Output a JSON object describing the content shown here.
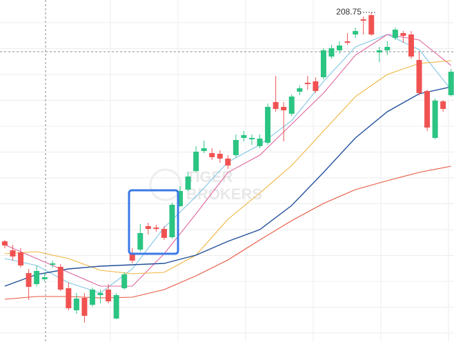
{
  "chart_data": {
    "type": "candlestick",
    "xlim": [
      -0.6,
      56.37
    ],
    "ylim": [
      160.95,
      210.55
    ],
    "watermark": [
      "TIGER",
      "BROKERS"
    ],
    "high_label": 208.75,
    "up_color": "#2bc483",
    "down_color": "#f05252",
    "x": [
      0,
      1,
      2,
      3,
      4,
      5,
      6,
      7,
      8,
      9,
      10,
      11,
      12,
      13,
      14,
      15,
      16,
      17,
      18,
      19,
      20,
      21,
      22,
      23,
      24,
      25,
      26,
      27,
      28,
      29,
      30,
      31,
      32,
      33,
      34,
      35,
      36,
      37,
      38,
      39,
      40,
      41,
      42,
      43,
      44,
      45,
      46,
      47,
      48,
      49,
      50,
      51,
      52,
      53,
      54,
      55,
      56
    ],
    "open": [
      175.55,
      174.25,
      173.95,
      170.95,
      169.35,
      170.05,
      172.15,
      171.85,
      168.75,
      165.55,
      167.35,
      166.35,
      167.75,
      168.55,
      164.35,
      168.75,
      173.75,
      174.35,
      177.75,
      177.55,
      177.35,
      176.15,
      180.65,
      183.05,
      185.75,
      188.65,
      188.35,
      188.25,
      187.55,
      188.05,
      190.55,
      190.35,
      189.35,
      189.85,
      195.75,
      195.05,
      194.05,
      197.25,
      198.55,
      198.75,
      199.35,
      202.35,
      203.25,
      204.55,
      205.55,
      207.75,
      208.35,
      202.95,
      203.25,
      205.05,
      205.75,
      205.55,
      201.85,
      197.35,
      190.55,
      195.85,
      196.75
    ],
    "high": [
      175.75,
      175.05,
      174.55,
      171.55,
      172.05,
      171.05,
      172.75,
      172.25,
      169.55,
      168.05,
      168.05,
      168.85,
      168.55,
      169.35,
      168.05,
      171.05,
      174.55,
      178.05,
      178.25,
      177.95,
      177.75,
      181.15,
      183.55,
      185.55,
      189.35,
      190.15,
      189.05,
      188.75,
      188.05,
      191.05,
      191.55,
      191.05,
      191.05,
      195.55,
      199.55,
      195.75,
      196.85,
      198.15,
      199.55,
      199.35,
      203.55,
      204.05,
      204.55,
      205.75,
      206.55,
      208.15,
      208.75,
      203.75,
      204.55,
      206.55,
      206.05,
      206.05,
      203.05,
      197.55,
      196.25,
      196.05,
      200.55
    ],
    "low": [
      174.55,
      172.75,
      171.75,
      167.05,
      169.05,
      169.75,
      171.75,
      168.35,
      165.55,
      165.05,
      163.75,
      166.05,
      166.55,
      166.55,
      164.25,
      168.55,
      172.35,
      174.05,
      176.55,
      176.95,
      175.75,
      175.95,
      180.55,
      182.85,
      185.55,
      188.35,
      187.35,
      186.95,
      186.05,
      187.75,
      190.05,
      189.55,
      189.05,
      189.55,
      194.35,
      190.05,
      193.75,
      196.75,
      197.55,
      197.05,
      199.05,
      202.05,
      202.75,
      204.05,
      205.05,
      205.55,
      205.35,
      201.55,
      202.55,
      204.75,
      204.35,
      202.05,
      196.75,
      191.55,
      190.35,
      194.35,
      196.55
    ],
    "close": [
      174.95,
      173.35,
      172.05,
      168.95,
      171.25,
      170.35,
      172.35,
      168.55,
      165.85,
      167.25,
      164.75,
      168.55,
      168.05,
      166.85,
      167.75,
      170.75,
      172.75,
      176.75,
      177.35,
      177.35,
      176.05,
      180.85,
      182.85,
      184.95,
      188.55,
      189.05,
      187.75,
      187.55,
      186.55,
      190.25,
      190.95,
      190.55,
      190.45,
      195.05,
      194.75,
      194.55,
      196.55,
      197.75,
      198.35,
      197.35,
      203.25,
      203.55,
      203.95,
      204.35,
      206.05,
      207.55,
      205.55,
      203.25,
      203.75,
      206.25,
      205.35,
      202.35,
      197.05,
      192.05,
      195.95,
      194.75,
      200.15
    ],
    "series": [
      {
        "color": "#7fc6e6",
        "x": [
          0,
          4,
          8,
          12,
          16,
          20,
          24,
          28,
          32,
          36,
          40,
          44,
          48,
          52,
          56
        ],
        "values": [
          173.05,
          172.05,
          169.55,
          168.05,
          171.55,
          177.55,
          182.05,
          187.05,
          189.55,
          193.05,
          198.75,
          203.75,
          205.55,
          203.35,
          197.55
        ]
      },
      {
        "color": "#e0649e",
        "x": [
          0,
          4,
          8,
          12,
          16,
          20,
          24,
          28,
          32,
          36,
          40,
          44,
          48,
          52,
          56
        ],
        "values": [
          175.05,
          173.05,
          171.05,
          169.05,
          169.05,
          173.75,
          179.55,
          185.55,
          188.05,
          192.55,
          197.05,
          202.55,
          205.55,
          204.75,
          201.05
        ]
      },
      {
        "color": "#f0b43c",
        "x": [
          0,
          4,
          8,
          12,
          16,
          20,
          24,
          28,
          32,
          36,
          40,
          44,
          48,
          52,
          56
        ],
        "values": [
          173.75,
          174.05,
          173.05,
          171.35,
          170.85,
          171.05,
          173.55,
          178.75,
          182.55,
          186.55,
          191.55,
          196.55,
          199.75,
          201.35,
          201.75
        ]
      },
      {
        "color": "#1f4e9b",
        "x": [
          0,
          4,
          8,
          12,
          16,
          20,
          24,
          28,
          32,
          36,
          40,
          44,
          48,
          52,
          56
        ],
        "values": [
          169.05,
          170.75,
          171.55,
          171.95,
          172.15,
          172.35,
          173.55,
          175.55,
          177.25,
          180.75,
          185.55,
          190.55,
          194.35,
          196.95,
          197.95
        ]
      },
      {
        "color": "#e8553e",
        "x": [
          0,
          4,
          8,
          12,
          16,
          20,
          24,
          28,
          32,
          36,
          40,
          44,
          48,
          52,
          56
        ],
        "values": [
          167.15,
          167.55,
          167.55,
          167.35,
          167.45,
          168.55,
          170.55,
          172.85,
          175.75,
          178.55,
          181.05,
          183.05,
          184.35,
          185.55,
          186.45
        ]
      }
    ]
  }
}
